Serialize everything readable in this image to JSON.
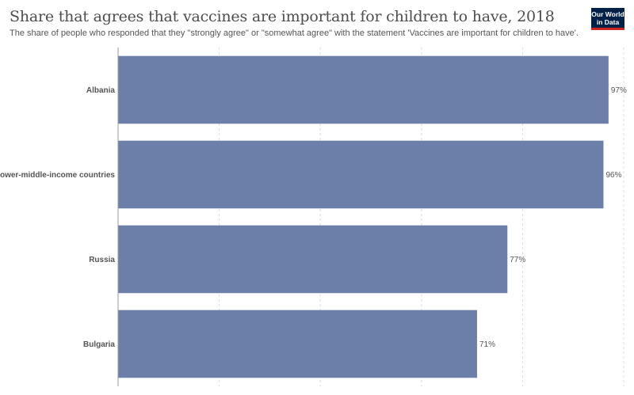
{
  "header": {
    "title": "Share that agrees that vaccines are important for children to have, 2018",
    "subtitle": "The share of people who responded that they \"strongly agree\" or \"somewhat agree\" with the statement 'Vaccines are important for children to have'."
  },
  "logo": {
    "line1": "Our World",
    "line2": "in Data",
    "bg_color": "#002147",
    "accent_color": "#ce261e"
  },
  "chart_data": {
    "type": "bar",
    "orientation": "horizontal",
    "categories": [
      "Albania",
      "Lower-middle-income countries",
      "Russia",
      "Bulgaria"
    ],
    "values": [
      97,
      96,
      77,
      71
    ],
    "value_labels": [
      "97%",
      "96%",
      "77%",
      "71%"
    ],
    "xlim": [
      0,
      100
    ],
    "grid": true,
    "bar_color": "#6b7fa8"
  }
}
